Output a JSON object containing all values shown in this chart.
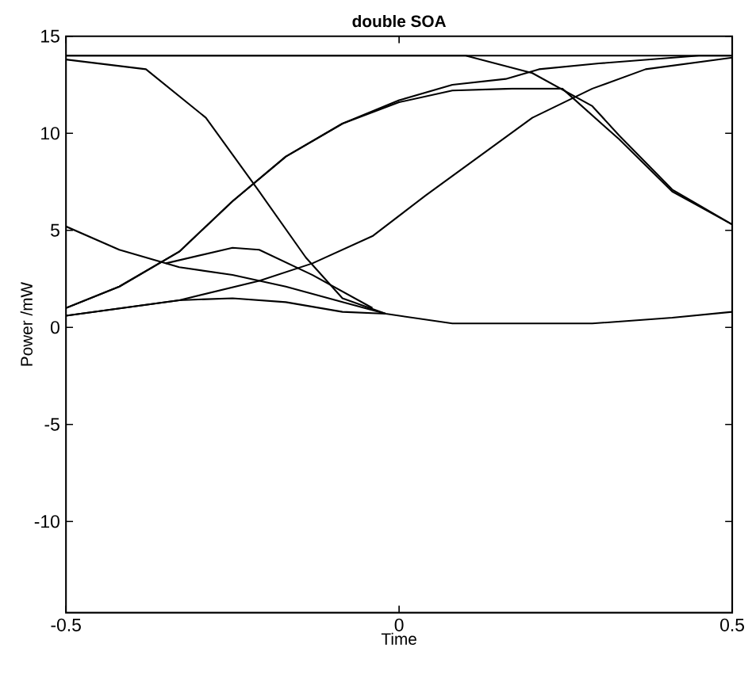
{
  "chart_data": {
    "type": "line",
    "title": "double SOA",
    "xlabel": "Time",
    "ylabel": "Power /mW",
    "xlim": [
      -0.5,
      0.5
    ],
    "ylim": [
      -14.7,
      15
    ],
    "xticks": [
      -0.5,
      0,
      0.5
    ],
    "yticks": [
      -10,
      -5,
      0,
      5,
      10,
      15
    ],
    "grid": false,
    "marker": "none",
    "line_style": "solid",
    "series": [
      {
        "color": "#000000",
        "x": [
          -0.5,
          -0.25,
          0,
          0.25,
          0.5
        ],
        "values": [
          14.0,
          14.0,
          14.0,
          14.0,
          14.0
        ]
      },
      {
        "color": "#000000",
        "x": [
          -0.5,
          -0.38,
          -0.29,
          -0.21,
          -0.14,
          -0.085,
          -0.02,
          0.08,
          0.16,
          0.29,
          0.41,
          0.5
        ],
        "values": [
          13.8,
          13.3,
          10.8,
          7.0,
          3.6,
          1.5,
          0.7,
          0.2,
          0.2,
          0.2,
          0.5,
          0.8
        ]
      },
      {
        "color": "#000000",
        "x": [
          -0.5,
          -0.42,
          -0.33,
          -0.25,
          -0.17,
          -0.085,
          0,
          0.08,
          0.16,
          0.21,
          0.3,
          0.45,
          0.5
        ],
        "values": [
          1.0,
          2.1,
          3.9,
          6.5,
          8.8,
          10.5,
          11.7,
          12.5,
          12.8,
          13.3,
          13.6,
          14.0,
          14.0
        ]
      },
      {
        "color": "#000000",
        "x": [
          -0.5,
          -0.42,
          -0.33,
          -0.25,
          -0.17,
          -0.085,
          0,
          0.08,
          0.17,
          0.245,
          0.33,
          0.41,
          0.5
        ],
        "values": [
          1.0,
          2.1,
          3.9,
          6.5,
          8.8,
          10.5,
          11.6,
          12.2,
          12.3,
          12.3,
          9.7,
          7.0,
          5.3
        ]
      },
      {
        "color": "#000000",
        "x": [
          -0.5,
          -0.2,
          0.1,
          0.2,
          0.29,
          0.33,
          0.41,
          0.5
        ],
        "values": [
          14.0,
          14.0,
          14.0,
          13.1,
          11.4,
          9.9,
          7.1,
          5.3
        ]
      },
      {
        "color": "#000000",
        "x": [
          -0.5,
          -0.33,
          -0.21,
          -0.13,
          -0.04,
          0.04,
          0.12,
          0.2,
          0.29,
          0.37,
          0.5
        ],
        "values": [
          0.6,
          1.4,
          2.4,
          3.3,
          4.7,
          6.8,
          8.8,
          10.8,
          12.3,
          13.3,
          13.9
        ]
      },
      {
        "color": "#000000",
        "x": [
          -0.5,
          -0.42,
          -0.33,
          -0.25,
          -0.17,
          -0.085,
          -0.02
        ],
        "values": [
          5.2,
          4.0,
          3.1,
          2.7,
          2.1,
          1.3,
          0.7
        ]
      },
      {
        "color": "#000000",
        "x": [
          -0.5,
          -0.33,
          -0.25,
          -0.17,
          -0.085,
          -0.02
        ],
        "values": [
          0.6,
          1.4,
          1.5,
          1.3,
          0.8,
          0.7
        ]
      },
      {
        "color": "#000000",
        "x": [
          -0.35,
          -0.25,
          -0.21,
          -0.13,
          -0.04
        ],
        "values": [
          3.3,
          4.1,
          4.0,
          2.7,
          1.0
        ]
      }
    ]
  }
}
